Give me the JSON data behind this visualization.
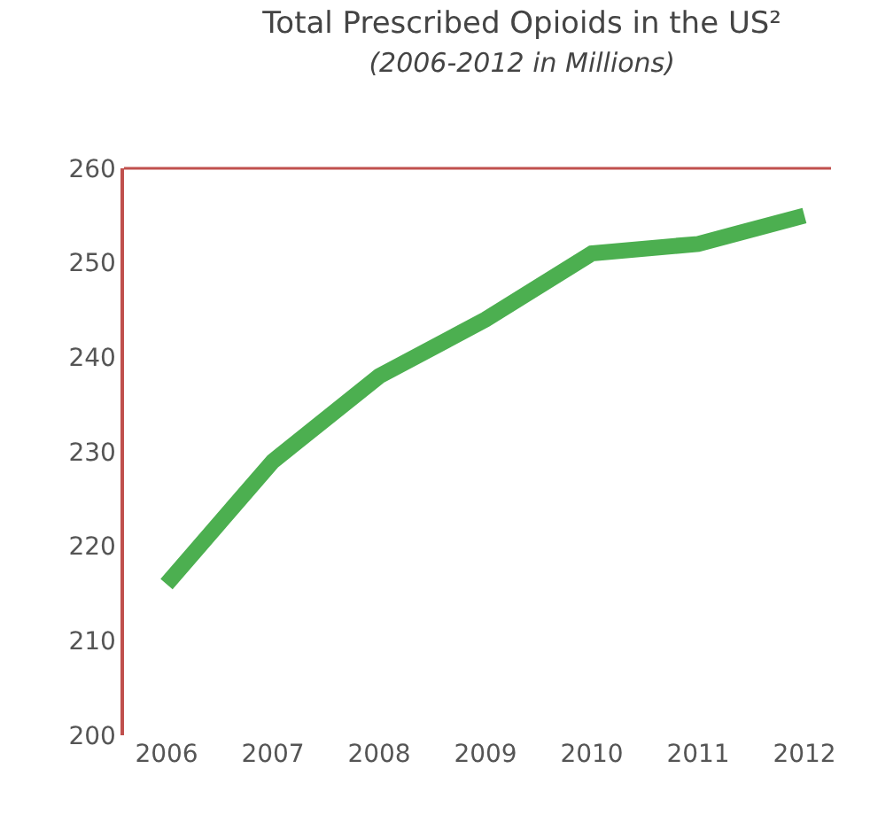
{
  "chart_data": {
    "type": "line",
    "title": "Total Prescribed Opioids in the US²",
    "subtitle": "(2006-2012 in Millions)",
    "categories": [
      "2006",
      "2007",
      "2008",
      "2009",
      "2010",
      "2011",
      "2012"
    ],
    "values": [
      216,
      229,
      238,
      244,
      251,
      252,
      255
    ],
    "color": "#4caf50",
    "ylim": [
      200,
      260
    ],
    "yticks": [
      200,
      210,
      220,
      230,
      240,
      250,
      260
    ],
    "line_style": "solid"
  }
}
